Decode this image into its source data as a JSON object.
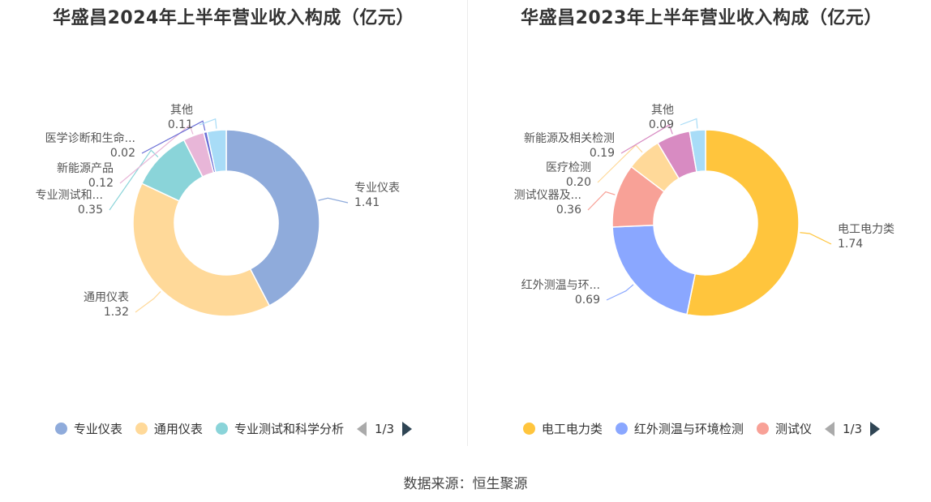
{
  "chart_data": [
    {
      "type": "pie",
      "title": "华盛昌2024年上半年营业收入构成（亿元）",
      "donut": true,
      "slices": [
        {
          "name": "专业仪表",
          "label": "专业仪表",
          "value": 1.41,
          "value_text": "1.41",
          "color": "#8fabdb"
        },
        {
          "name": "通用仪表",
          "label": "通用仪表",
          "value": 1.32,
          "value_text": "1.32",
          "color": "#ffd999"
        },
        {
          "name": "专业测试和科学分析",
          "label": "专业测试和...",
          "value": 0.35,
          "value_text": "0.35",
          "color": "#8ad4d9"
        },
        {
          "name": "新能源产品",
          "label": "新能源产品",
          "value": 0.12,
          "value_text": "0.12",
          "color": "#e8b6d8"
        },
        {
          "name": "医学诊断和生命",
          "label": "医学诊断和生命...",
          "value": 0.02,
          "value_text": "0.02",
          "color": "#6b6fd6"
        },
        {
          "name": "其他",
          "label": "其他",
          "value": 0.11,
          "value_text": "0.11",
          "color": "#a8dcf7"
        }
      ],
      "legend": {
        "placement": "bottom",
        "items": [
          {
            "name": "专业仪表",
            "color": "#8fabdb"
          },
          {
            "name": "通用仪表",
            "color": "#ffd999"
          },
          {
            "name": "专业测试和科学分析",
            "color": "#8ad4d9"
          }
        ],
        "page": "1/3"
      }
    },
    {
      "type": "pie",
      "title": "华盛昌2023年上半年营业收入构成（亿元）",
      "donut": true,
      "slices": [
        {
          "name": "电工电力类",
          "label": "电工电力类",
          "value": 1.74,
          "value_text": "1.74",
          "color": "#ffc53d"
        },
        {
          "name": "红外测温与环境检测",
          "label": "红外测温与环...",
          "value": 0.69,
          "value_text": "0.69",
          "color": "#8aa7ff"
        },
        {
          "name": "测试仪器及",
          "label": "测试仪器及...",
          "value": 0.36,
          "value_text": "0.36",
          "color": "#f8a197"
        },
        {
          "name": "医疗检测",
          "label": "医疗检测",
          "value": 0.2,
          "value_text": "0.20",
          "color": "#ffd999"
        },
        {
          "name": "新能源及相关检测",
          "label": "新能源及相关检测",
          "value": 0.19,
          "value_text": "0.19",
          "color": "#d88bc2"
        },
        {
          "name": "其他",
          "label": "其他",
          "value": 0.09,
          "value_text": "0.09",
          "color": "#a8dcf7"
        }
      ],
      "legend": {
        "placement": "bottom",
        "items": [
          {
            "name": "电工电力类",
            "color": "#ffc53d"
          },
          {
            "name": "红外测温与环境检测",
            "color": "#8aa7ff"
          },
          {
            "name": "测试仪",
            "color": "#f8a197"
          }
        ],
        "page": "1/3"
      }
    }
  ],
  "footer": {
    "source": "数据来源：恒生聚源"
  }
}
